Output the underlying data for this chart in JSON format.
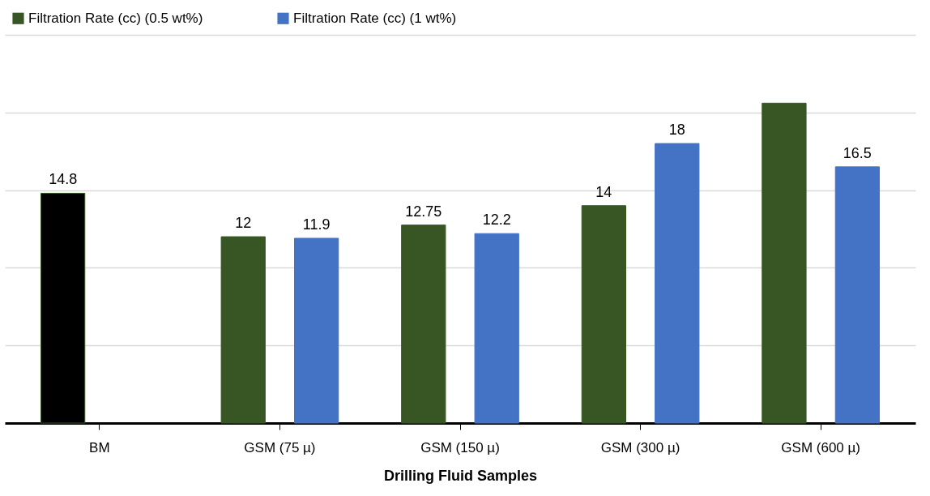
{
  "chart_data": {
    "type": "bar",
    "xlabel": "Drilling Fluid Samples",
    "categories": [
      "BM",
      "GSM (75 µ)",
      "GSM (150 µ)",
      "GSM (300 µ)",
      "GSM (600 µ)"
    ],
    "series": [
      {
        "name": "Filtration Rate (cc) (0.5 wt%)",
        "color": "#375623",
        "colors": [
          "#000000",
          "#375623",
          "#375623",
          "#375623",
          "#375623"
        ],
        "values": [
          14.8,
          12,
          12.75,
          14,
          20.6
        ],
        "value_labels": [
          "14.8",
          "12",
          "12.75",
          "14",
          null
        ]
      },
      {
        "name": "Filtration Rate (cc) (1 wt%)",
        "color": "#4472c4",
        "values": [
          null,
          11.9,
          12.2,
          18,
          16.5
        ],
        "value_labels": [
          null,
          "11.9",
          "12.2",
          "18",
          "16.5"
        ]
      }
    ],
    "ylim": [
      0,
      25
    ],
    "yticks": [
      {
        "value": 0,
        "label": null
      },
      {
        "value": 5,
        "label": null
      },
      {
        "value": 10,
        "label": null
      },
      {
        "value": 15,
        "label": null
      },
      {
        "value": 20,
        "label": null
      },
      {
        "value": 25,
        "label": null
      }
    ],
    "tick_labels": "x",
    "grid": "y",
    "legend": "top"
  }
}
